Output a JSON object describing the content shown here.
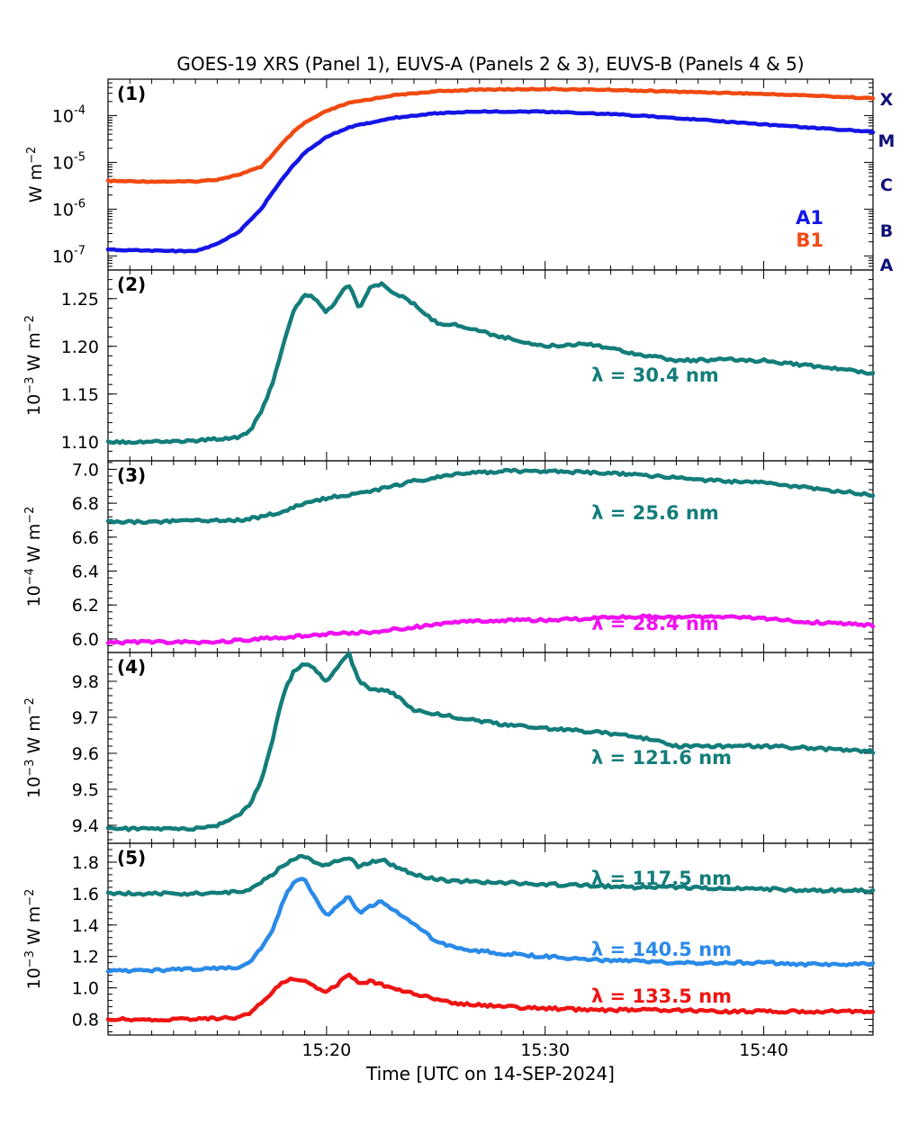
{
  "figure_title": "GOES-19 XRS (Panel 1), EUVS-A (Panels 2 & 3), EUVS-B (Panels 4 & 5)",
  "x_axis": {
    "label": "Time [UTC on 14-SEP-2024]",
    "tick_labels": [
      "15:20",
      "15:30",
      "15:40"
    ],
    "range_minutes": [
      670.0,
      705.0
    ],
    "major_ticks_minutes": [
      680,
      690,
      700
    ],
    "minor_tick_step_minutes": 1
  },
  "colors": {
    "A1": "#1515e6",
    "B1": "#f04a12",
    "teal": "#137d7a",
    "magenta": "#f010f0",
    "lightblue": "#2a8ae8",
    "red": "#ee1414",
    "class_letters": "#10107a"
  },
  "chart_data": [
    {
      "type": "line",
      "panel_label": "(1)",
      "ylabel_html": "W m<tspan baseline-shift='super' font-size='13'>−2</tspan>",
      "y_scale": "log",
      "ylim": [
        5e-08,
        0.0006
      ],
      "y_tick_labels": [
        "10⁻⁷",
        "10⁻⁶",
        "10⁻⁵",
        "10⁻⁴"
      ],
      "y_ticks": [
        1e-07,
        1e-06,
        1e-05,
        0.0001
      ],
      "flare_classes": [
        {
          "label": "X",
          "value": 0.0001
        },
        {
          "label": "M",
          "value": 1e-05
        },
        {
          "label": "C",
          "value": 1e-06
        },
        {
          "label": "B",
          "value": 1e-07
        },
        {
          "label": "A",
          "value": 1.6e-08
        }
      ],
      "x": [
        670,
        672,
        674,
        675,
        676,
        677,
        677.5,
        678,
        678.5,
        679,
        680,
        681,
        683,
        685,
        687,
        690,
        693,
        696,
        699,
        702,
        705
      ],
      "series": [
        {
          "name": "B1",
          "color_key": "B1",
          "values": [
            4e-06,
            3.9e-06,
            3.9e-06,
            4.3e-06,
            5.5e-06,
            8e-06,
            1.4e-05,
            2.6e-05,
            4.5e-05,
            7e-05,
            0.000125,
            0.000185,
            0.00027,
            0.00033,
            0.00036,
            0.00037,
            0.000355,
            0.000325,
            0.0003,
            0.00027,
            0.000235
          ]
        },
        {
          "name": "A1",
          "color_key": "A1",
          "values": [
            1.35e-07,
            1.3e-07,
            1.25e-07,
            1.8e-07,
            3.3e-07,
            1e-06,
            2.2e-06,
            4.6e-06,
            9e-06,
            1.6e-05,
            3.5e-05,
            5.6e-05,
            8.9e-05,
            0.000112,
            0.000123,
            0.000121,
            0.000108,
            8.9e-05,
            7e-05,
            5.6e-05,
            4.5e-05
          ]
        }
      ],
      "legend": [
        {
          "text": "A1",
          "color_key": "A1"
        },
        {
          "text": "B1",
          "color_key": "B1"
        }
      ]
    },
    {
      "type": "line",
      "panel_label": "(2)",
      "ylabel_html": "10<tspan baseline-shift='super' font-size='13'>−3</tspan> W m<tspan baseline-shift='super' font-size='13'>−2</tspan>",
      "ylim": [
        1.08,
        1.28
      ],
      "y_ticks": [
        1.1,
        1.15,
        1.2,
        1.25
      ],
      "y_tick_labels": [
        "1.10",
        "1.15",
        "1.20",
        "1.25"
      ],
      "x": [
        670,
        672,
        674,
        676,
        676.5,
        677,
        677.5,
        678,
        678.5,
        679,
        679.5,
        680,
        680.5,
        681,
        681.5,
        682,
        682.5,
        683,
        684,
        685,
        686,
        688,
        690,
        692,
        694,
        696,
        698,
        700,
        702,
        705
      ],
      "series": [
        {
          "name": "λ = 30.4 nm",
          "color_key": "teal",
          "values": [
            1.1,
            1.1,
            1.101,
            1.105,
            1.112,
            1.13,
            1.16,
            1.2,
            1.237,
            1.255,
            1.25,
            1.235,
            1.25,
            1.266,
            1.24,
            1.262,
            1.265,
            1.258,
            1.244,
            1.225,
            1.222,
            1.21,
            1.2,
            1.203,
            1.193,
            1.185,
            1.186,
            1.185,
            1.18,
            1.172
          ]
        }
      ]
    },
    {
      "type": "line",
      "panel_label": "(3)",
      "ylabel_html": "10<tspan baseline-shift='super' font-size='13'>−4</tspan> W m<tspan baseline-shift='super' font-size='13'>−2</tspan>",
      "ylim": [
        5.92,
        7.05
      ],
      "y_ticks": [
        6.0,
        6.2,
        6.4,
        6.6,
        6.8,
        7.0
      ],
      "y_tick_labels": [
        "6.0",
        "6.2",
        "6.4",
        "6.6",
        "6.8",
        "7.0"
      ],
      "x": [
        670,
        672,
        674,
        676,
        677,
        678,
        679,
        680,
        682,
        684,
        686,
        688,
        690,
        692,
        694,
        696,
        698,
        700,
        702,
        705
      ],
      "series": [
        {
          "name": "λ = 25.6 nm",
          "color_key": "teal",
          "values": [
            6.69,
            6.69,
            6.7,
            6.7,
            6.72,
            6.75,
            6.8,
            6.83,
            6.87,
            6.93,
            6.97,
            6.99,
            6.99,
            6.98,
            6.97,
            6.95,
            6.93,
            6.92,
            6.89,
            6.85
          ]
        },
        {
          "name": "λ = 28.4 nm",
          "color_key": "magenta",
          "values": [
            5.98,
            5.98,
            5.98,
            5.99,
            6.0,
            6.01,
            6.02,
            6.03,
            6.04,
            6.07,
            6.1,
            6.11,
            6.11,
            6.12,
            6.13,
            6.13,
            6.13,
            6.12,
            6.1,
            6.08
          ]
        }
      ]
    },
    {
      "type": "line",
      "panel_label": "(4)",
      "ylabel_html": "10<tspan baseline-shift='super' font-size='13'>−3</tspan> W m<tspan baseline-shift='super' font-size='13'>−2</tspan>",
      "ylim": [
        9.35,
        9.88
      ],
      "y_ticks": [
        9.4,
        9.5,
        9.6,
        9.7,
        9.8
      ],
      "y_tick_labels": [
        "9.4",
        "9.5",
        "9.6",
        "9.7",
        "9.8"
      ],
      "x": [
        670,
        672,
        674,
        675,
        676,
        676.5,
        677,
        677.5,
        678,
        678.5,
        679,
        679.5,
        680,
        680.5,
        681,
        681.5,
        682,
        683,
        684,
        686,
        688,
        690,
        692,
        694,
        696,
        698,
        700,
        702,
        705
      ],
      "series": [
        {
          "name": "λ = 121.6 nm",
          "color_key": "teal",
          "values": [
            9.39,
            9.39,
            9.39,
            9.4,
            9.43,
            9.46,
            9.52,
            9.63,
            9.76,
            9.83,
            9.85,
            9.83,
            9.8,
            9.84,
            9.88,
            9.8,
            9.78,
            9.77,
            9.72,
            9.7,
            9.68,
            9.67,
            9.66,
            9.65,
            9.62,
            9.62,
            9.62,
            9.615,
            9.605
          ]
        }
      ]
    },
    {
      "type": "line",
      "panel_label": "(5)",
      "ylabel_html": "10<tspan baseline-shift='super' font-size='13'>−3</tspan> W m<tspan baseline-shift='super' font-size='13'>−2</tspan>",
      "ylim": [
        0.7,
        1.92
      ],
      "y_ticks": [
        0.8,
        1.0,
        1.2,
        1.4,
        1.6,
        1.8
      ],
      "y_tick_labels": [
        "0.8",
        "1.0",
        "1.2",
        "1.4",
        "1.6",
        "1.8"
      ],
      "x": [
        670,
        672,
        674,
        676,
        676.5,
        677,
        677.5,
        678,
        678.5,
        679,
        679.5,
        680,
        680.5,
        681,
        681.5,
        682,
        682.5,
        683,
        684,
        685,
        686,
        688,
        690,
        692,
        694,
        696,
        698,
        700,
        702,
        705
      ],
      "series": [
        {
          "name": "λ = 117.5 nm",
          "color_key": "teal",
          "values": [
            1.6,
            1.6,
            1.6,
            1.61,
            1.63,
            1.67,
            1.72,
            1.78,
            1.82,
            1.84,
            1.8,
            1.78,
            1.81,
            1.83,
            1.77,
            1.8,
            1.82,
            1.78,
            1.72,
            1.69,
            1.68,
            1.67,
            1.66,
            1.65,
            1.64,
            1.64,
            1.63,
            1.63,
            1.62,
            1.62
          ]
        },
        {
          "name": "λ = 140.5 nm",
          "color_key": "lightblue",
          "values": [
            1.11,
            1.11,
            1.12,
            1.13,
            1.17,
            1.25,
            1.35,
            1.55,
            1.68,
            1.7,
            1.56,
            1.46,
            1.52,
            1.58,
            1.48,
            1.52,
            1.55,
            1.5,
            1.4,
            1.3,
            1.25,
            1.22,
            1.2,
            1.18,
            1.17,
            1.16,
            1.16,
            1.16,
            1.15,
            1.15
          ]
        },
        {
          "name": "λ = 133.5 nm",
          "color_key": "red",
          "values": [
            0.8,
            0.8,
            0.8,
            0.81,
            0.84,
            0.9,
            0.97,
            1.04,
            1.06,
            1.05,
            1.0,
            0.98,
            1.02,
            1.09,
            1.02,
            1.04,
            1.02,
            1.0,
            0.96,
            0.93,
            0.9,
            0.88,
            0.87,
            0.86,
            0.86,
            0.86,
            0.85,
            0.85,
            0.85,
            0.85
          ]
        }
      ]
    }
  ]
}
